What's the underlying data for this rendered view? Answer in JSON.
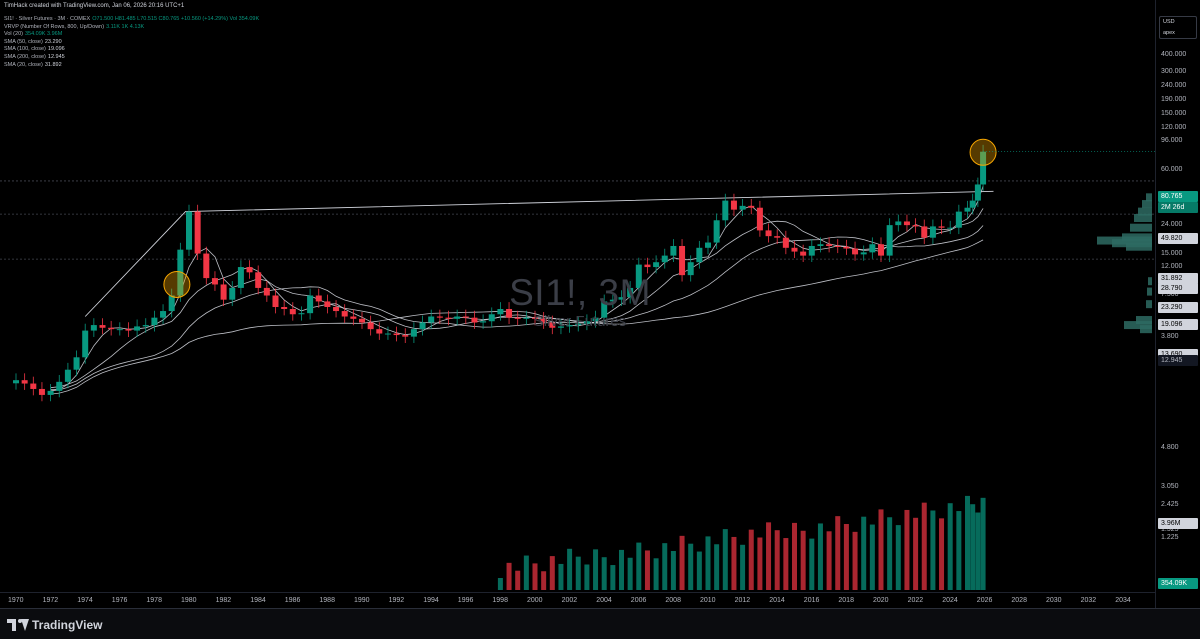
{
  "header": {
    "credit": "TimHack created with TradingView.com, Jan 06, 2026 20:16 UTC+1"
  },
  "legend": [
    {
      "label": "SI1! · Silver Futures · 3M · COMEX",
      "value": "O71.500 H81.485 L70.515 C80.765 +10.560 (+14.29%) Vol 354.09K"
    },
    {
      "label": "VRVP (Number Of Rows, 800, Up/Down)",
      "value": "3.11K 1K 4.13K"
    },
    {
      "label": "Vol (20)",
      "value": "354.09K 3.96M"
    },
    {
      "label": "SMA (50, close)",
      "value": "23.290"
    },
    {
      "label": "SMA (100, close)",
      "value": "19.096"
    },
    {
      "label": "SMA (200, close)",
      "value": "12.945"
    },
    {
      "label": "SMA (20, close)",
      "value": "31.892"
    }
  ],
  "watermark": {
    "symbol": "SI1!, 3M",
    "name": "Silver Futures"
  },
  "price_axis": {
    "currency": "USD",
    "scale_mode": "apex",
    "ticks": [
      "400.000",
      "300.000",
      "240.000",
      "190.000",
      "150.000",
      "120.000",
      "96.000",
      "60.000",
      "38.000",
      "24.000",
      "15.000",
      "12.000",
      "9.500",
      "7.500",
      "6.000",
      "3.800",
      "3.050",
      "2.425",
      "1.525",
      "1.225"
    ],
    "badges": [
      {
        "value": "80.765",
        "sub": "2M 26d",
        "kind": "last"
      },
      {
        "value": "49.820",
        "kind": "level"
      },
      {
        "value": "31.892",
        "kind": "sma20"
      },
      {
        "value": "28.790",
        "kind": "level"
      },
      {
        "value": "23.290",
        "kind": "sma50"
      },
      {
        "value": "19.096",
        "kind": "sma100"
      },
      {
        "value": "13.690",
        "kind": "level"
      },
      {
        "value": "12.945",
        "kind": "sma200"
      },
      {
        "value": "4.800",
        "kind": "plain"
      },
      {
        "value": "3.96M",
        "kind": "vol-avg"
      },
      {
        "value": "354.09K",
        "kind": "vol"
      }
    ]
  },
  "time_axis": {
    "ticks": [
      "1970",
      "1972",
      "1974",
      "1976",
      "1978",
      "1980",
      "1982",
      "1984",
      "1986",
      "1988",
      "1990",
      "1992",
      "1994",
      "1996",
      "1998",
      "2000",
      "2002",
      "2004",
      "2006",
      "2008",
      "2010",
      "2012",
      "2014",
      "2016",
      "2018",
      "2020",
      "2022",
      "2024",
      "2026",
      "2028",
      "2030",
      "2032",
      "2034"
    ]
  },
  "colors": {
    "up": "#089981",
    "down": "#f23645",
    "bg": "#000000",
    "sma": "#d1d4dc",
    "highlight": "#f7a600",
    "vrvp": "#2e6b63"
  },
  "chart_data": {
    "type": "candlestick",
    "symbol": "SI1!",
    "interval": "3M",
    "y_scale": "log",
    "ylim": [
      1.2,
      400
    ],
    "xlim": [
      1970,
      2034
    ],
    "series": [
      {
        "name": "SI1!",
        "points": [
          [
            1970.0,
            1.85
          ],
          [
            1970.5,
            1.75
          ],
          [
            1971.0,
            1.6
          ],
          [
            1971.5,
            1.45
          ],
          [
            1972.0,
            1.55
          ],
          [
            1972.5,
            1.8
          ],
          [
            1973.0,
            2.2
          ],
          [
            1973.5,
            2.7
          ],
          [
            1974.0,
            4.2
          ],
          [
            1974.5,
            4.6
          ],
          [
            1975.0,
            4.4
          ],
          [
            1975.5,
            4.3
          ],
          [
            1976.0,
            4.3
          ],
          [
            1976.5,
            4.2
          ],
          [
            1977.0,
            4.5
          ],
          [
            1977.5,
            4.6
          ],
          [
            1978.0,
            5.2
          ],
          [
            1978.5,
            5.8
          ],
          [
            1979.0,
            7.5
          ],
          [
            1979.5,
            16.0
          ],
          [
            1980.0,
            30.0
          ],
          [
            1980.5,
            15.0
          ],
          [
            1981.0,
            10.0
          ],
          [
            1981.5,
            9.0
          ],
          [
            1982.0,
            7.0
          ],
          [
            1982.5,
            8.5
          ],
          [
            1983.0,
            12.0
          ],
          [
            1983.5,
            11.0
          ],
          [
            1984.0,
            8.5
          ],
          [
            1984.5,
            7.5
          ],
          [
            1985.0,
            6.2
          ],
          [
            1985.5,
            6.0
          ],
          [
            1986.0,
            5.5
          ],
          [
            1986.5,
            5.6
          ],
          [
            1987.0,
            7.5
          ],
          [
            1987.5,
            6.8
          ],
          [
            1988.0,
            6.2
          ],
          [
            1988.5,
            5.8
          ],
          [
            1989.0,
            5.3
          ],
          [
            1989.5,
            5.1
          ],
          [
            1990.0,
            4.8
          ],
          [
            1990.5,
            4.3
          ],
          [
            1991.0,
            4.0
          ],
          [
            1991.5,
            4.0
          ],
          [
            1992.0,
            3.9
          ],
          [
            1992.5,
            3.8
          ],
          [
            1993.0,
            4.3
          ],
          [
            1993.5,
            4.8
          ],
          [
            1994.0,
            5.3
          ],
          [
            1994.5,
            5.2
          ],
          [
            1995.0,
            5.1
          ],
          [
            1995.5,
            5.3
          ],
          [
            1996.0,
            5.2
          ],
          [
            1996.5,
            4.8
          ],
          [
            1997.0,
            4.9
          ],
          [
            1997.5,
            5.5
          ],
          [
            1998.0,
            6.0
          ],
          [
            1998.5,
            5.2
          ],
          [
            1999.0,
            5.1
          ],
          [
            1999.5,
            5.2
          ],
          [
            2000.0,
            5.1
          ],
          [
            2000.5,
            4.8
          ],
          [
            2001.0,
            4.4
          ],
          [
            2001.5,
            4.5
          ],
          [
            2002.0,
            4.6
          ],
          [
            2002.5,
            4.7
          ],
          [
            2003.0,
            4.9
          ],
          [
            2003.5,
            5.2
          ],
          [
            2004.0,
            6.8
          ],
          [
            2004.5,
            7.0
          ],
          [
            2005.0,
            7.3
          ],
          [
            2005.5,
            8.5
          ],
          [
            2006.0,
            12.5
          ],
          [
            2006.5,
            12.0
          ],
          [
            2007.0,
            13.0
          ],
          [
            2007.5,
            14.5
          ],
          [
            2008.0,
            17.0
          ],
          [
            2008.5,
            10.5
          ],
          [
            2009.0,
            13.0
          ],
          [
            2009.5,
            16.5
          ],
          [
            2010.0,
            18.0
          ],
          [
            2010.5,
            26.0
          ],
          [
            2011.0,
            36.0
          ],
          [
            2011.5,
            31.0
          ],
          [
            2012.0,
            33.0
          ],
          [
            2012.5,
            32.0
          ],
          [
            2013.0,
            22.0
          ],
          [
            2013.5,
            20.0
          ],
          [
            2014.0,
            19.5
          ],
          [
            2014.5,
            16.5
          ],
          [
            2015.0,
            15.5
          ],
          [
            2015.5,
            14.5
          ],
          [
            2016.0,
            17.0
          ],
          [
            2016.5,
            17.5
          ],
          [
            2017.0,
            17.0
          ],
          [
            2017.5,
            16.8
          ],
          [
            2018.0,
            16.3
          ],
          [
            2018.5,
            14.8
          ],
          [
            2019.0,
            15.3
          ],
          [
            2019.5,
            17.5
          ],
          [
            2020.0,
            14.5
          ],
          [
            2020.5,
            24.0
          ],
          [
            2021.0,
            25.5
          ],
          [
            2021.5,
            24.0
          ],
          [
            2022.0,
            23.5
          ],
          [
            2022.5,
            19.5
          ],
          [
            2023.0,
            23.5
          ],
          [
            2023.5,
            23.0
          ],
          [
            2024.0,
            23.0
          ],
          [
            2024.5,
            30.0
          ],
          [
            2025.0,
            32.0
          ],
          [
            2025.3,
            36.0
          ],
          [
            2025.6,
            47.0
          ],
          [
            2025.9,
            80.765
          ]
        ]
      },
      {
        "name": "SMA (20, close)",
        "value": 31.892
      },
      {
        "name": "SMA (50, close)",
        "value": 23.29
      },
      {
        "name": "SMA (100, close)",
        "value": 19.096
      },
      {
        "name": "SMA (200, close)",
        "value": 12.945
      }
    ],
    "horizontal_levels": [
      49.82,
      28.79,
      13.69
    ],
    "trendline": [
      [
        1974.0,
        5.3
      ],
      [
        1979.8,
        30.0
      ],
      [
        2026.5,
        42.0
      ]
    ],
    "highlights": [
      [
        1979.3,
        9.0
      ],
      [
        2025.9,
        80.0
      ]
    ],
    "last_price": 80.765,
    "volume_last": "354.09K",
    "volume_avg": "3.96M"
  }
}
